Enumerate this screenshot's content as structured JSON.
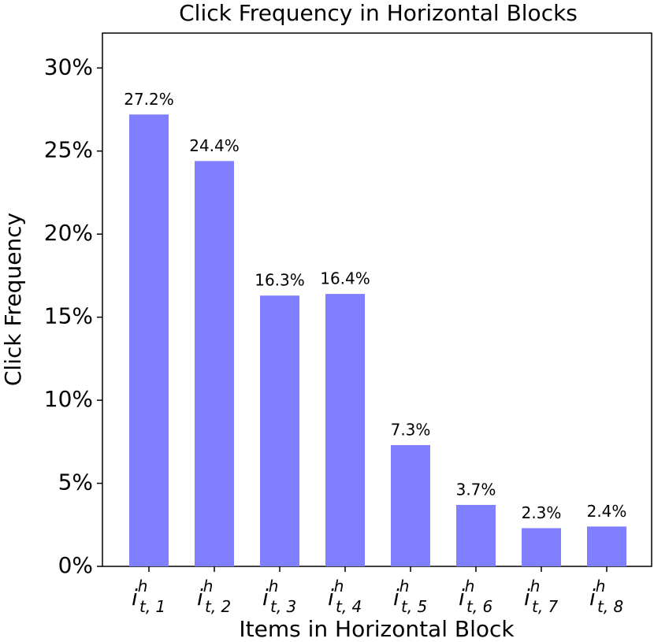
{
  "chart_data": {
    "type": "bar",
    "title": "Click Frequency in Horizontal Blocks",
    "x_label": "Items in Horizontal Block",
    "y_label": "Click Frequency",
    "categories": [
      {
        "base": "i",
        "sup": "h",
        "sub": "t, 1"
      },
      {
        "base": "i",
        "sup": "h",
        "sub": "t, 2"
      },
      {
        "base": "i",
        "sup": "h",
        "sub": "t, 3"
      },
      {
        "base": "i",
        "sup": "h",
        "sub": "t, 4"
      },
      {
        "base": "i",
        "sup": "h",
        "sub": "t, 5"
      },
      {
        "base": "i",
        "sup": "h",
        "sub": "t, 6"
      },
      {
        "base": "i",
        "sup": "h",
        "sub": "t, 7"
      },
      {
        "base": "i",
        "sup": "h",
        "sub": "t, 8"
      }
    ],
    "values": [
      27.2,
      24.4,
      16.3,
      16.4,
      7.3,
      3.7,
      2.3,
      2.4
    ],
    "value_labels": [
      "27.2%",
      "24.4%",
      "16.3%",
      "16.4%",
      "7.3%",
      "3.7%",
      "2.3%",
      "2.4%"
    ],
    "color": "#7f7fff",
    "ylim": [
      0,
      32.1
    ],
    "yticks": [
      {
        "value": 0,
        "label": "0%"
      },
      {
        "value": 5,
        "label": "5%"
      },
      {
        "value": 10,
        "label": "10%"
      },
      {
        "value": 15,
        "label": "15%"
      },
      {
        "value": 20,
        "label": "20%"
      },
      {
        "value": 25,
        "label": "25%"
      },
      {
        "value": 30,
        "label": "30%"
      }
    ],
    "grid": false
  }
}
